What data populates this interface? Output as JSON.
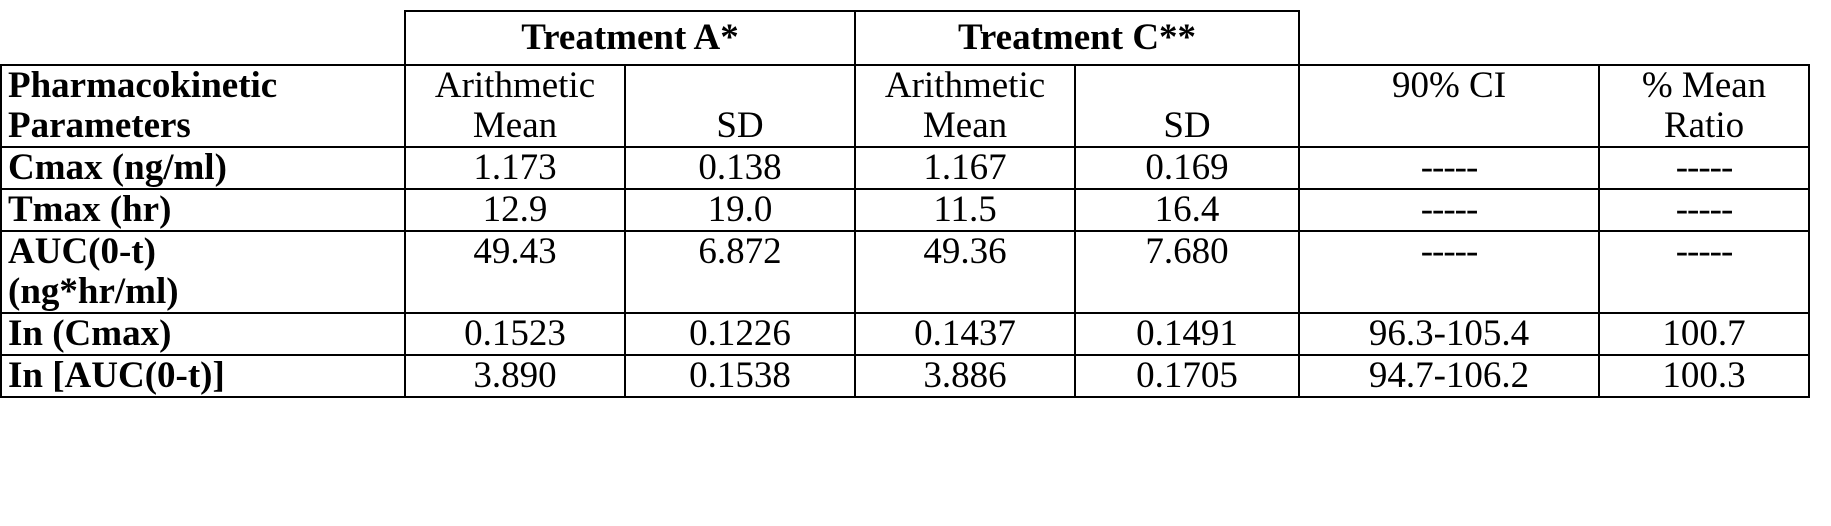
{
  "table": {
    "group_headers": [
      "Treatment A*",
      "Treatment C**"
    ],
    "param_header": [
      "Pharmacokinetic",
      "Parameters"
    ],
    "sub_headers": {
      "a_mean": [
        "Arithmetic",
        "Mean"
      ],
      "a_sd": "SD",
      "c_mean": [
        "Arithmetic",
        "Mean"
      ],
      "c_sd": "SD",
      "ci": "90% CI",
      "ratio": [
        "% Mean",
        "Ratio"
      ]
    },
    "rows": [
      {
        "param": [
          "Cmax (ng/ml)"
        ],
        "a_mean": "1.173",
        "a_sd": "0.138",
        "c_mean": "1.167",
        "c_sd": "0.169",
        "ci": "-----",
        "ratio": "-----"
      },
      {
        "param": [
          "Tmax (hr)"
        ],
        "a_mean": "12.9",
        "a_sd": "19.0",
        "c_mean": "11.5",
        "c_sd": "16.4",
        "ci": "-----",
        "ratio": "-----"
      },
      {
        "param": [
          "AUC(0-t)",
          "(ng*hr/ml)"
        ],
        "a_mean": "49.43",
        "a_sd": "6.872",
        "c_mean": "49.36",
        "c_sd": "7.680",
        "ci": "-----",
        "ratio": "-----"
      },
      {
        "param": [
          "In (Cmax)"
        ],
        "a_mean": "0.1523",
        "a_sd": "0.1226",
        "c_mean": "0.1437",
        "c_sd": "0.1491",
        "ci": "96.3-105.4",
        "ratio": "100.7"
      },
      {
        "param": [
          "In [AUC(0-t)]"
        ],
        "a_mean": "3.890",
        "a_sd": "0.1538",
        "c_mean": "3.886",
        "c_sd": "0.1705",
        "ci": "94.7-106.2",
        "ratio": "100.3"
      }
    ]
  }
}
